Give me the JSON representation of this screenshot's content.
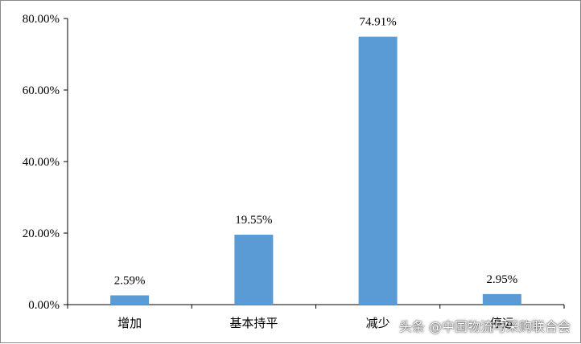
{
  "chart_data": {
    "type": "bar",
    "categories": [
      "增加",
      "基本持平",
      "减少",
      "停运"
    ],
    "values": [
      2.59,
      19.55,
      74.91,
      2.95
    ],
    "data_labels": [
      "2.59%",
      "19.55%",
      "74.91%",
      "2.95%"
    ],
    "ylim": [
      0,
      80
    ],
    "yticks": [
      0,
      20,
      40,
      60,
      80
    ],
    "ytick_labels": [
      "0.00%",
      "20.00%",
      "40.00%",
      "60.00%",
      "80.00%"
    ],
    "grid": false,
    "legend": "none",
    "bar_color": "#5b9bd5"
  },
  "watermark": "头条 @中国物流与采购联合会"
}
